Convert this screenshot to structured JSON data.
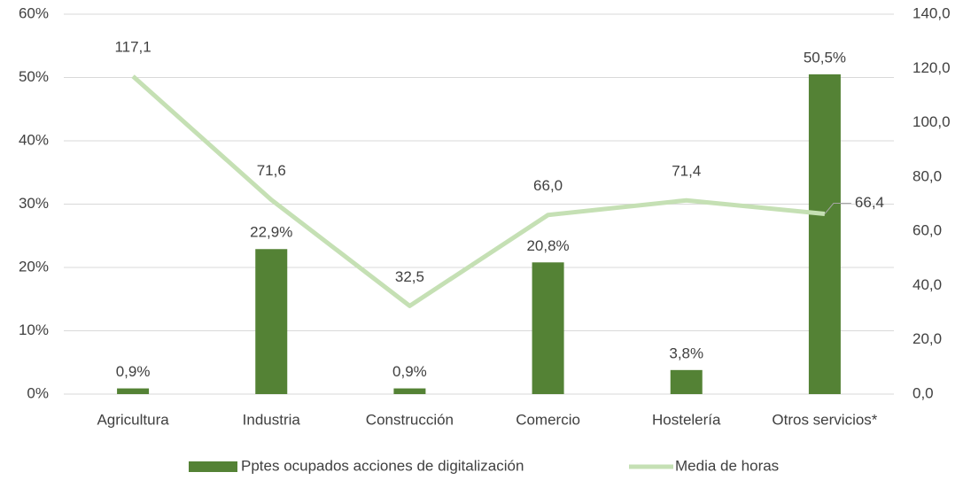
{
  "chart_data": {
    "type": "bar",
    "categories": [
      "Agricultura",
      "Industria",
      "Construcción",
      "Comercio",
      "Hostelería",
      "Otros servicios*"
    ],
    "series": [
      {
        "name": "Pptes ocupados acciones de digitalización",
        "type": "bar",
        "color": "#548235",
        "values": [
          0.9,
          22.9,
          0.9,
          20.8,
          3.8,
          50.5
        ],
        "value_labels": [
          "0,9%",
          "22,9%",
          "0,9%",
          "20,8%",
          "3,8%",
          "50,5%"
        ]
      },
      {
        "name": "Media de horas",
        "type": "line",
        "axis": "y2",
        "color": "#c5e0b4",
        "values": [
          117.1,
          71.6,
          32.5,
          66.0,
          71.4,
          66.4
        ],
        "value_labels": [
          "117,1",
          "71,6",
          "32,5",
          "66,0",
          "71,4",
          "66,4"
        ]
      }
    ],
    "ylim": [
      0,
      60
    ],
    "yticks": [
      {
        "value": 0,
        "label": "0%"
      },
      {
        "value": 10,
        "label": "10%"
      },
      {
        "value": 20,
        "label": "20%"
      },
      {
        "value": 30,
        "label": "30%"
      },
      {
        "value": 40,
        "label": "40%"
      },
      {
        "value": 50,
        "label": "50%"
      },
      {
        "value": 60,
        "label": "60%"
      }
    ],
    "y2lim": [
      0,
      140
    ],
    "y2ticks": [
      {
        "value": 0,
        "label": "0,0"
      },
      {
        "value": 20,
        "label": "20,0"
      },
      {
        "value": 40,
        "label": "40,0"
      },
      {
        "value": 60,
        "label": "60,0"
      },
      {
        "value": 80,
        "label": "80,0"
      },
      {
        "value": 100,
        "label": "100,0"
      },
      {
        "value": 120,
        "label": "120,0"
      },
      {
        "value": 140,
        "label": "140,0"
      }
    ],
    "grid": true,
    "legend": "bottom"
  }
}
